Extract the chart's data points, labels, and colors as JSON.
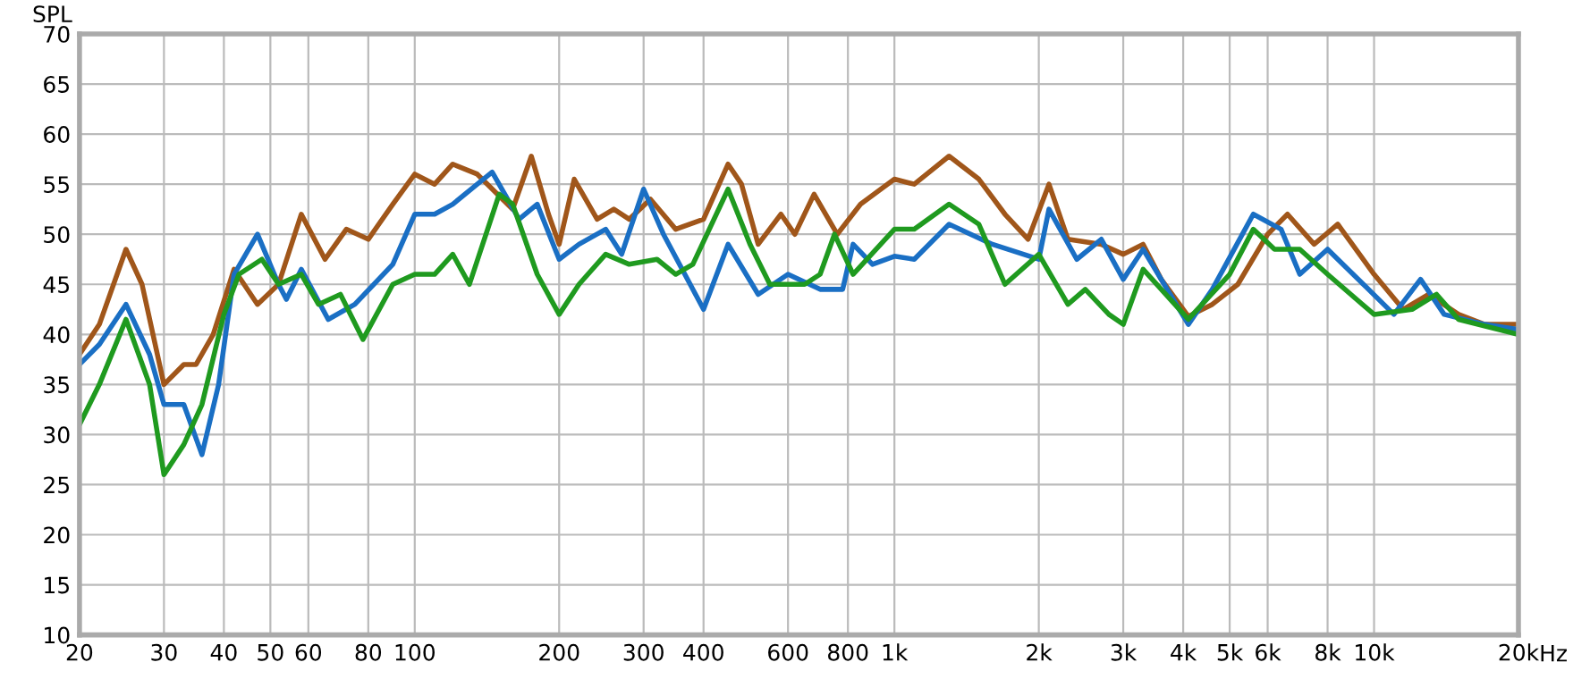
{
  "chart_data": {
    "type": "line",
    "ylabel": "SPL",
    "log": "x",
    "grid": true,
    "line_style": "solid",
    "xlim": [
      20,
      20000
    ],
    "ylim": [
      10,
      70
    ],
    "xticks": [
      20,
      30,
      40,
      50,
      60,
      80,
      100,
      200,
      300,
      400,
      600,
      800,
      {
        "value": 1000,
        "label": "1k"
      },
      {
        "value": 2000,
        "label": "2k"
      },
      {
        "value": 3000,
        "label": "3k"
      },
      {
        "value": 4000,
        "label": "4k"
      },
      {
        "value": 5000,
        "label": "5k"
      },
      {
        "value": 6000,
        "label": "6k"
      },
      {
        "value": 8000,
        "label": "8k"
      },
      {
        "value": 10000,
        "label": "10k"
      },
      {
        "value": 20000,
        "label": "20k"
      }
    ],
    "xlabel": "Hz",
    "yticks": [
      10,
      15,
      20,
      25,
      30,
      35,
      40,
      45,
      50,
      55,
      60,
      65,
      70
    ],
    "series": [
      {
        "color": "#a0561a",
        "x": [
          20,
          22,
          25,
          27,
          30,
          33,
          35,
          38,
          42,
          47,
          52,
          58,
          65,
          72,
          80,
          90,
          100,
          110,
          120,
          135,
          160,
          175,
          190,
          200,
          215,
          240,
          260,
          280,
          310,
          350,
          400,
          450,
          480,
          520,
          580,
          620,
          680,
          760,
          850,
          1000,
          1100,
          1300,
          1500,
          1700,
          1900,
          2100,
          2300,
          2700,
          3000,
          3300,
          3600,
          4100,
          4600,
          5200,
          6000,
          6600,
          7500,
          8400,
          10000,
          11500,
          13000,
          15000,
          17000,
          20000
        ],
        "values": [
          38,
          41,
          48.5,
          45,
          35,
          37,
          37,
          40,
          46.5,
          43,
          45,
          52,
          47.5,
          50.5,
          49.5,
          53,
          56,
          55,
          57,
          56,
          52.5,
          57.8,
          52,
          49,
          55.5,
          51.5,
          52.5,
          51.5,
          53.5,
          50.5,
          51.5,
          57,
          55,
          49,
          52,
          50,
          54,
          50,
          53,
          55.5,
          55,
          57.8,
          55.5,
          52,
          49.5,
          55,
          49.5,
          49,
          48,
          49,
          45.5,
          41.8,
          43,
          45,
          50,
          52,
          49,
          51,
          46,
          42.5,
          44,
          42,
          41,
          41
        ]
      },
      {
        "color": "#1a6fc4",
        "x": [
          20,
          22,
          25,
          28,
          30,
          33,
          36,
          39,
          42,
          47,
          52,
          54,
          58,
          66,
          75,
          90,
          100,
          110,
          120,
          135,
          145,
          165,
          180,
          200,
          220,
          250,
          270,
          300,
          330,
          400,
          450,
          520,
          600,
          700,
          780,
          820,
          900,
          1000,
          1100,
          1300,
          1600,
          2000,
          2100,
          2400,
          2700,
          3000,
          3300,
          4100,
          4600,
          5600,
          6400,
          7000,
          8000,
          9500,
          11000,
          12500,
          14000,
          17000,
          20000
        ],
        "values": [
          37,
          39,
          43,
          38,
          33,
          33,
          28,
          35,
          46,
          50,
          45,
          43.5,
          46.5,
          41.5,
          43,
          47,
          52,
          52,
          53,
          55,
          56.2,
          51.5,
          53,
          47.5,
          49,
          50.5,
          48,
          54.5,
          50,
          42.5,
          49,
          44,
          46,
          44.5,
          44.5,
          49,
          47,
          47.8,
          47.5,
          51,
          49,
          47.5,
          52.5,
          47.5,
          49.5,
          45.5,
          48.5,
          41,
          44.5,
          52,
          50.5,
          46,
          48.5,
          45,
          42,
          45.5,
          42,
          41,
          40.5
        ]
      },
      {
        "color": "#1f9a1f",
        "x": [
          20,
          22,
          25,
          28,
          30,
          33,
          36,
          40,
          43,
          48,
          52,
          58,
          63,
          70,
          78,
          90,
          100,
          110,
          120,
          130,
          150,
          160,
          180,
          200,
          220,
          250,
          280,
          320,
          350,
          380,
          450,
          500,
          550,
          650,
          700,
          750,
          820,
          1000,
          1100,
          1300,
          1500,
          1700,
          2000,
          2300,
          2500,
          2800,
          3000,
          3300,
          4100,
          5000,
          5600,
          6200,
          7000,
          8000,
          10000,
          12000,
          13500,
          15000,
          20000
        ],
        "values": [
          31,
          35,
          41.5,
          35,
          26,
          29,
          33,
          42,
          46,
          47.5,
          45,
          46,
          43,
          44,
          39.5,
          45,
          46,
          46,
          48,
          45,
          54,
          53,
          46,
          42,
          45,
          48,
          47,
          47.5,
          46,
          47,
          54.5,
          49,
          45,
          45,
          46,
          50,
          46,
          50.5,
          50.5,
          53,
          51,
          45,
          48,
          43,
          44.5,
          42,
          41,
          46.5,
          41.5,
          46,
          50.5,
          48.5,
          48.5,
          46,
          42,
          42.5,
          44,
          41.5,
          40
        ]
      }
    ]
  }
}
